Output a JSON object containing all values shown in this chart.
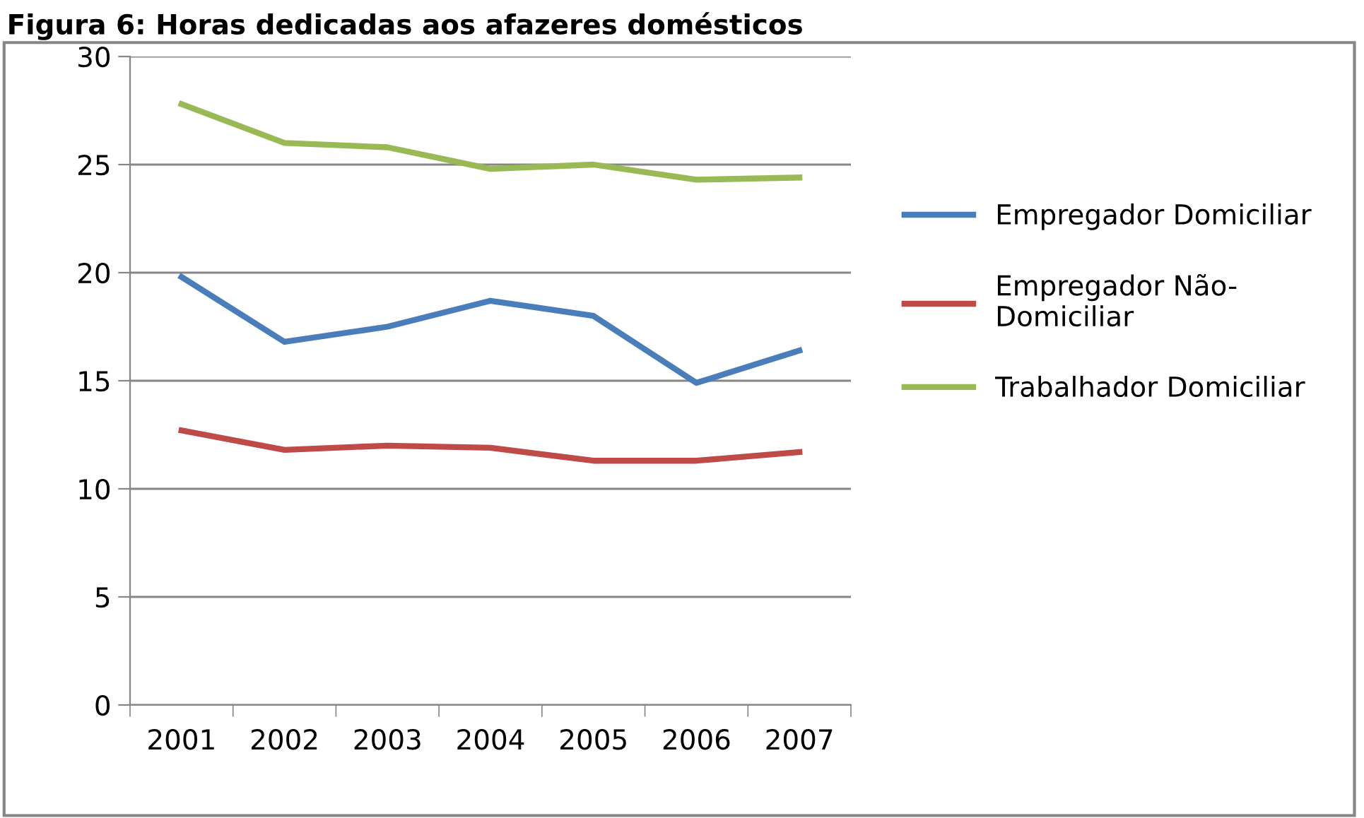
{
  "chart_data": {
    "type": "line",
    "title": "Figura 6: Horas dedicadas aos afazeres domésticos",
    "categories": [
      "2001",
      "2002",
      "2003",
      "2004",
      "2005",
      "2006",
      "2007"
    ],
    "series": [
      {
        "name": "Empregador Domiciliar",
        "color": "#4a7ebb",
        "values": [
          19.8,
          16.8,
          17.5,
          18.7,
          18.0,
          14.9,
          16.4
        ]
      },
      {
        "name": "Empregador Não-\nDomiciliar",
        "color": "#be4b48",
        "values": [
          12.7,
          11.8,
          12.0,
          11.9,
          11.3,
          11.3,
          11.7
        ]
      },
      {
        "name": "Trabalhador Domiciliar",
        "color": "#98b954",
        "values": [
          27.8,
          26.0,
          25.8,
          24.8,
          25.0,
          24.3,
          24.4
        ]
      }
    ],
    "ylim": [
      0,
      30
    ],
    "yticks": [
      0,
      5,
      10,
      15,
      20,
      25,
      30
    ],
    "grid": "y",
    "legend": "right",
    "marker": "none",
    "line_style": "solid"
  }
}
